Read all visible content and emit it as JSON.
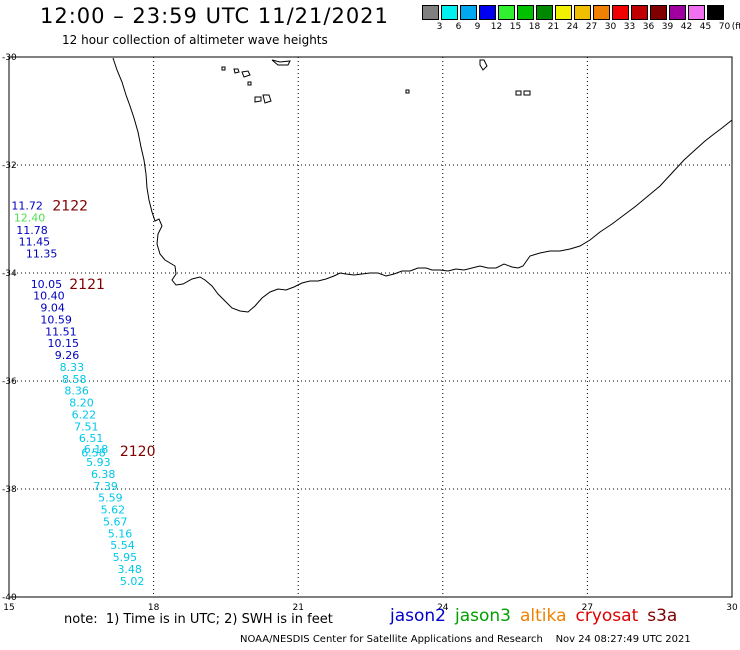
{
  "header": {
    "title": "12:00 – 23:59 UTC 11/21/2021",
    "subtitle": "12 hour collection of altimeter wave heights"
  },
  "colorbar": {
    "unit_label": "(ft)",
    "swatches": [
      {
        "color": "#808080",
        "label": "3"
      },
      {
        "color": "#00f0f0",
        "label": "6"
      },
      {
        "color": "#00a8f0",
        "label": "9"
      },
      {
        "color": "#0000f0",
        "label": "12"
      },
      {
        "color": "#30f030",
        "label": "15"
      },
      {
        "color": "#00c000",
        "label": "18"
      },
      {
        "color": "#008800",
        "label": "21"
      },
      {
        "color": "#f0f000",
        "label": "24"
      },
      {
        "color": "#f0c000",
        "label": "27"
      },
      {
        "color": "#f08000",
        "label": "30"
      },
      {
        "color": "#f00000",
        "label": "33"
      },
      {
        "color": "#c00000",
        "label": "36"
      },
      {
        "color": "#800000",
        "label": "39"
      },
      {
        "color": "#a000a0",
        "label": "42"
      },
      {
        "color": "#f070f0",
        "label": "45"
      },
      {
        "color": "#000000",
        "label": "70"
      }
    ]
  },
  "axes": {
    "lon_ticks": [
      "15",
      "18",
      "21",
      "24",
      "27",
      "30"
    ],
    "lat_ticks": [
      "-30",
      "-32",
      "-34",
      "-36",
      "-38",
      "-40"
    ],
    "lon_range": [
      15,
      30
    ],
    "lat_range": [
      -40,
      -30
    ]
  },
  "colors": {
    "pass_label": "#800000",
    "jason2": "#0000cc",
    "jason3": "#00a000",
    "altika": "#f08000",
    "cryosat": "#e00000",
    "s3a": "#800000",
    "obs_blue": "#0000c0",
    "obs_green": "#50e050",
    "obs_cyan": "#00c8e8"
  },
  "pass_labels": [
    {
      "text": "2122",
      "lon": 15.9,
      "lat": -32.75
    },
    {
      "text": "2121",
      "lon": 16.25,
      "lat": -34.2
    },
    {
      "text": "2120",
      "lon": 17.3,
      "lat": -37.3
    }
  ],
  "observations": [
    {
      "value": "11.72",
      "lon": 15.05,
      "lat": -32.75,
      "color": "obs_blue"
    },
    {
      "value": "12.40",
      "lon": 15.1,
      "lat": -32.97,
      "color": "obs_green"
    },
    {
      "value": "11.78",
      "lon": 15.15,
      "lat": -33.2,
      "color": "obs_blue"
    },
    {
      "value": "11.45",
      "lon": 15.2,
      "lat": -33.42,
      "color": "obs_blue"
    },
    {
      "value": "11.35",
      "lon": 15.35,
      "lat": -33.64,
      "color": "obs_blue"
    },
    {
      "value": "10.05",
      "lon": 15.45,
      "lat": -34.2,
      "color": "obs_blue"
    },
    {
      "value": "10.40",
      "lon": 15.5,
      "lat": -34.42,
      "color": "obs_blue"
    },
    {
      "value": "9.04",
      "lon": 15.65,
      "lat": -34.64,
      "color": "obs_blue"
    },
    {
      "value": "10.59",
      "lon": 15.65,
      "lat": -34.86,
      "color": "obs_blue"
    },
    {
      "value": "11.51",
      "lon": 15.75,
      "lat": -35.08,
      "color": "obs_blue"
    },
    {
      "value": "10.15",
      "lon": 15.8,
      "lat": -35.3,
      "color": "obs_blue"
    },
    {
      "value": "9.26",
      "lon": 15.95,
      "lat": -35.52,
      "color": "obs_blue"
    },
    {
      "value": "8.33",
      "lon": 16.05,
      "lat": -35.74,
      "color": "obs_cyan"
    },
    {
      "value": "8.58",
      "lon": 16.1,
      "lat": -35.96,
      "color": "obs_cyan"
    },
    {
      "value": "8.36",
      "lon": 16.15,
      "lat": -36.18,
      "color": "obs_cyan"
    },
    {
      "value": "8.20",
      "lon": 16.25,
      "lat": -36.4,
      "color": "obs_cyan"
    },
    {
      "value": "6.22",
      "lon": 16.3,
      "lat": -36.62,
      "color": "obs_cyan"
    },
    {
      "value": "7.51",
      "lon": 16.35,
      "lat": -36.84,
      "color": "obs_cyan"
    },
    {
      "value": "6.51",
      "lon": 16.45,
      "lat": -37.06,
      "color": "obs_cyan"
    },
    {
      "value": "6.18",
      "lon": 16.55,
      "lat": -37.26,
      "color": "obs_cyan"
    },
    {
      "value": "6.58",
      "lon": 16.5,
      "lat": -37.32,
      "color": "obs_cyan"
    },
    {
      "value": "5.93",
      "lon": 16.6,
      "lat": -37.5,
      "color": "obs_cyan"
    },
    {
      "value": "6.38",
      "lon": 16.7,
      "lat": -37.72,
      "color": "obs_cyan"
    },
    {
      "value": "7.39",
      "lon": 16.75,
      "lat": -37.94,
      "color": "obs_cyan"
    },
    {
      "value": "5.59",
      "lon": 16.85,
      "lat": -38.16,
      "color": "obs_cyan"
    },
    {
      "value": "5.62",
      "lon": 16.9,
      "lat": -38.38,
      "color": "obs_cyan"
    },
    {
      "value": "5.67",
      "lon": 16.95,
      "lat": -38.6,
      "color": "obs_cyan"
    },
    {
      "value": "5.16",
      "lon": 17.05,
      "lat": -38.82,
      "color": "obs_cyan"
    },
    {
      "value": "5.54",
      "lon": 17.1,
      "lat": -39.04,
      "color": "obs_cyan"
    },
    {
      "value": "5.95",
      "lon": 17.15,
      "lat": -39.26,
      "color": "obs_cyan"
    },
    {
      "value": "3.48",
      "lon": 17.25,
      "lat": -39.48,
      "color": "obs_cyan"
    },
    {
      "value": "5.02",
      "lon": 17.3,
      "lat": -39.7,
      "color": "obs_cyan"
    }
  ],
  "note": "note:  1) Time is in UTC; 2) SWH is in feet",
  "legend": [
    {
      "name": "jason2",
      "color": "jason2"
    },
    {
      "name": "jason3",
      "color": "jason3"
    },
    {
      "name": "altika",
      "color": "altika"
    },
    {
      "name": "cryosat",
      "color": "cryosat"
    },
    {
      "name": "s3a",
      "color": "s3a"
    }
  ],
  "footer": "NOAA/NESDIS Center for Satellite Applications and Research    Nov 24 08:27:49 UTC 2021"
}
